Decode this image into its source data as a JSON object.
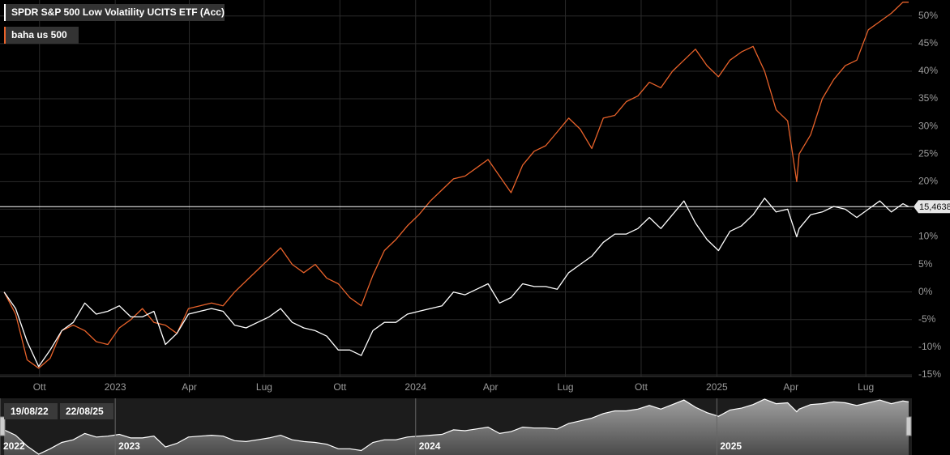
{
  "chart_data": {
    "type": "line",
    "grid": true,
    "xlim": [
      "2022-08-14",
      "2025-08-24"
    ],
    "ylim": [
      -15.3,
      52.9
    ],
    "yticks": [
      {
        "value": 50,
        "label": "50%"
      },
      {
        "value": 45,
        "label": "45%"
      },
      {
        "value": 40,
        "label": "40%"
      },
      {
        "value": 35,
        "label": "35%"
      },
      {
        "value": 30,
        "label": "30%"
      },
      {
        "value": 25,
        "label": "25%"
      },
      {
        "value": 20,
        "label": "20%"
      },
      {
        "value": 15,
        "label": "15%"
      },
      {
        "value": 10,
        "label": "10%"
      },
      {
        "value": 5,
        "label": "5%"
      },
      {
        "value": 0,
        "label": "0%"
      },
      {
        "value": -5,
        "label": "-5%"
      },
      {
        "value": -10,
        "label": "-10%"
      },
      {
        "value": -15,
        "label": "-15%"
      }
    ],
    "xticks": [
      {
        "value": "2022-10-01",
        "label": "Ott"
      },
      {
        "value": "2023-01-01",
        "label": "2023"
      },
      {
        "value": "2023-04-01",
        "label": "Apr"
      },
      {
        "value": "2023-07-01",
        "label": "Lug"
      },
      {
        "value": "2023-10-01",
        "label": "Ott"
      },
      {
        "value": "2024-01-01",
        "label": "2024"
      },
      {
        "value": "2024-04-01",
        "label": "Apr"
      },
      {
        "value": "2024-07-01",
        "label": "Lug"
      },
      {
        "value": "2024-10-01",
        "label": "Ott"
      },
      {
        "value": "2025-01-01",
        "label": "2025"
      },
      {
        "value": "2025-04-01",
        "label": "Apr"
      },
      {
        "value": "2025-07-01",
        "label": "Lug"
      }
    ],
    "x": [
      "2022-08-19",
      "2022-09-02",
      "2022-09-16",
      "2022-09-30",
      "2022-10-14",
      "2022-10-28",
      "2022-11-11",
      "2022-11-25",
      "2022-12-09",
      "2022-12-23",
      "2023-01-06",
      "2023-01-20",
      "2023-02-03",
      "2023-02-17",
      "2023-03-03",
      "2023-03-17",
      "2023-03-31",
      "2023-04-14",
      "2023-04-28",
      "2023-05-12",
      "2023-05-26",
      "2023-06-09",
      "2023-06-23",
      "2023-07-07",
      "2023-07-21",
      "2023-08-04",
      "2023-08-18",
      "2023-09-01",
      "2023-09-15",
      "2023-09-29",
      "2023-10-13",
      "2023-10-27",
      "2023-11-10",
      "2023-11-24",
      "2023-12-08",
      "2023-12-22",
      "2024-01-05",
      "2024-01-19",
      "2024-02-02",
      "2024-02-16",
      "2024-03-01",
      "2024-03-15",
      "2024-03-29",
      "2024-04-12",
      "2024-04-26",
      "2024-05-10",
      "2024-05-24",
      "2024-06-07",
      "2024-06-21",
      "2024-07-05",
      "2024-07-19",
      "2024-08-02",
      "2024-08-16",
      "2024-08-30",
      "2024-09-13",
      "2024-09-27",
      "2024-10-11",
      "2024-10-25",
      "2024-11-08",
      "2024-11-22",
      "2024-12-06",
      "2024-12-20",
      "2025-01-03",
      "2025-01-17",
      "2025-01-31",
      "2025-02-14",
      "2025-02-28",
      "2025-03-14",
      "2025-03-28",
      "2025-04-08",
      "2025-04-11",
      "2025-04-25",
      "2025-05-09",
      "2025-05-23",
      "2025-06-06",
      "2025-06-20",
      "2025-07-04",
      "2025-07-18",
      "2025-08-01",
      "2025-08-15",
      "2025-08-22"
    ],
    "series": [
      {
        "name": "SPDR S&P 500 Low Volatility UCITS ETF (Acc)",
        "color": "#ffffff",
        "values": [
          0,
          -3,
          -9,
          -13.5,
          -10.5,
          -7,
          -5.5,
          -2,
          -4,
          -3.5,
          -2.5,
          -4.5,
          -4.5,
          -3.5,
          -9.5,
          -7.5,
          -4,
          -3.5,
          -3,
          -3.5,
          -6,
          -6.5,
          -5.5,
          -4.5,
          -3,
          -5.5,
          -6.5,
          -7,
          -8,
          -10.5,
          -10.5,
          -11.5,
          -7,
          -5.5,
          -5.5,
          -4,
          -3.5,
          -3,
          -2.5,
          0,
          -0.5,
          0.5,
          1.5,
          -2,
          -1,
          1.5,
          1,
          1,
          0.5,
          3.5,
          5,
          6.5,
          9,
          10.5,
          10.5,
          11.5,
          13.5,
          11.5,
          14,
          16.5,
          12.5,
          9.5,
          7.5,
          11,
          12,
          14,
          17,
          14.5,
          15,
          10,
          11.5,
          14,
          14.5,
          15.5,
          15,
          13.5,
          15,
          16.5,
          14.5,
          16,
          15.46
        ]
      },
      {
        "name": "baha us 500",
        "color": "#e8622a",
        "values": [
          0,
          -4,
          -12.3,
          -13.8,
          -12,
          -7,
          -6,
          -7,
          -9,
          -9.5,
          -6.5,
          -5,
          -3,
          -5.5,
          -6,
          -7.5,
          -3,
          -2.5,
          -2,
          -2.5,
          0,
          2,
          4,
          6,
          8,
          5,
          3.5,
          5,
          2.5,
          1.5,
          -1,
          -2.5,
          3,
          7.5,
          9.5,
          12,
          14,
          16.5,
          18.5,
          20.5,
          21,
          22.5,
          24,
          21,
          18,
          23,
          25.5,
          26.5,
          29,
          31.5,
          29.5,
          26,
          31.5,
          32,
          34.5,
          35.5,
          38,
          37,
          40,
          42,
          44,
          41,
          39,
          42,
          43.5,
          44.5,
          40,
          33,
          31,
          20,
          25,
          28.5,
          35,
          38.5,
          41,
          42,
          47.5,
          49,
          50.5,
          52.5,
          52.5
        ]
      }
    ],
    "last_value": {
      "value": 15.4638,
      "label": "15,4638"
    },
    "navigator": {
      "start_label": "19/08/22",
      "end_label": "22/08/25",
      "xticks": [
        {
          "value": "2022-08-14",
          "label": "2022"
        },
        {
          "value": "2023-01-01",
          "label": "2023"
        },
        {
          "value": "2024-01-01",
          "label": "2024"
        },
        {
          "value": "2025-01-01",
          "label": "2025"
        }
      ]
    }
  }
}
